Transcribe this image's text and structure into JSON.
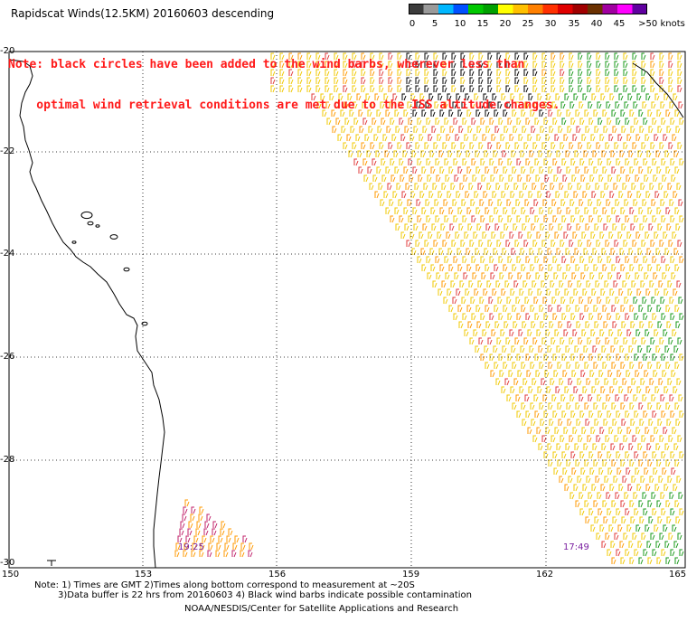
{
  "header": {
    "title": "Rapidscat Winds(12.5KM) 20160603 descending",
    "note_line1": "Note: black circles have been added to the wind barbs, wherever less than",
    "note_line2": "    optimal wind retrieval conditions are met due to the ISS altitude changes."
  },
  "legend": {
    "unit_label": ">50 knots",
    "ticks": [
      "0",
      "5",
      "10",
      "15",
      "20",
      "25",
      "30",
      "35",
      "40",
      "45"
    ],
    "colors": [
      "#3c3c3c",
      "#9a9a9a",
      "#00b7ff",
      "#0050ff",
      "#00c800",
      "#00a000",
      "#ffff00",
      "#ffc000",
      "#ff8000",
      "#ff3000",
      "#e00000",
      "#a00000",
      "#6a3000",
      "#a000a0",
      "#ff00ff",
      "#6000a0"
    ]
  },
  "map": {
    "lat_labels": [
      "-20",
      "-22",
      "-24",
      "-26",
      "-28",
      "-30"
    ],
    "lon_labels": [
      "150",
      "153",
      "156",
      "159",
      "162",
      "165"
    ],
    "time_labels": [
      "19:25",
      "17:49"
    ],
    "colors": {
      "coast": "#000000",
      "grid": "#000000",
      "barb_yellow": "#f0c800",
      "barb_orange": "#ff9a00",
      "barb_red": "#e03a3a",
      "barb_green": "#1a9a1a",
      "barb_black": "#000000",
      "barb_magenta": "#c0206a",
      "time": "#7a1fa0"
    }
  },
  "footer": {
    "note1": "Note: 1) Times are GMT 2)Times along bottom correspond to measurement at ~20S",
    "note2": "3)Data buffer is 22 hrs from 20160603 4) Black wind barbs indicate possible contamination",
    "credit": "NOAA/NESDIS/Center for Satellite Applications and Research"
  }
}
